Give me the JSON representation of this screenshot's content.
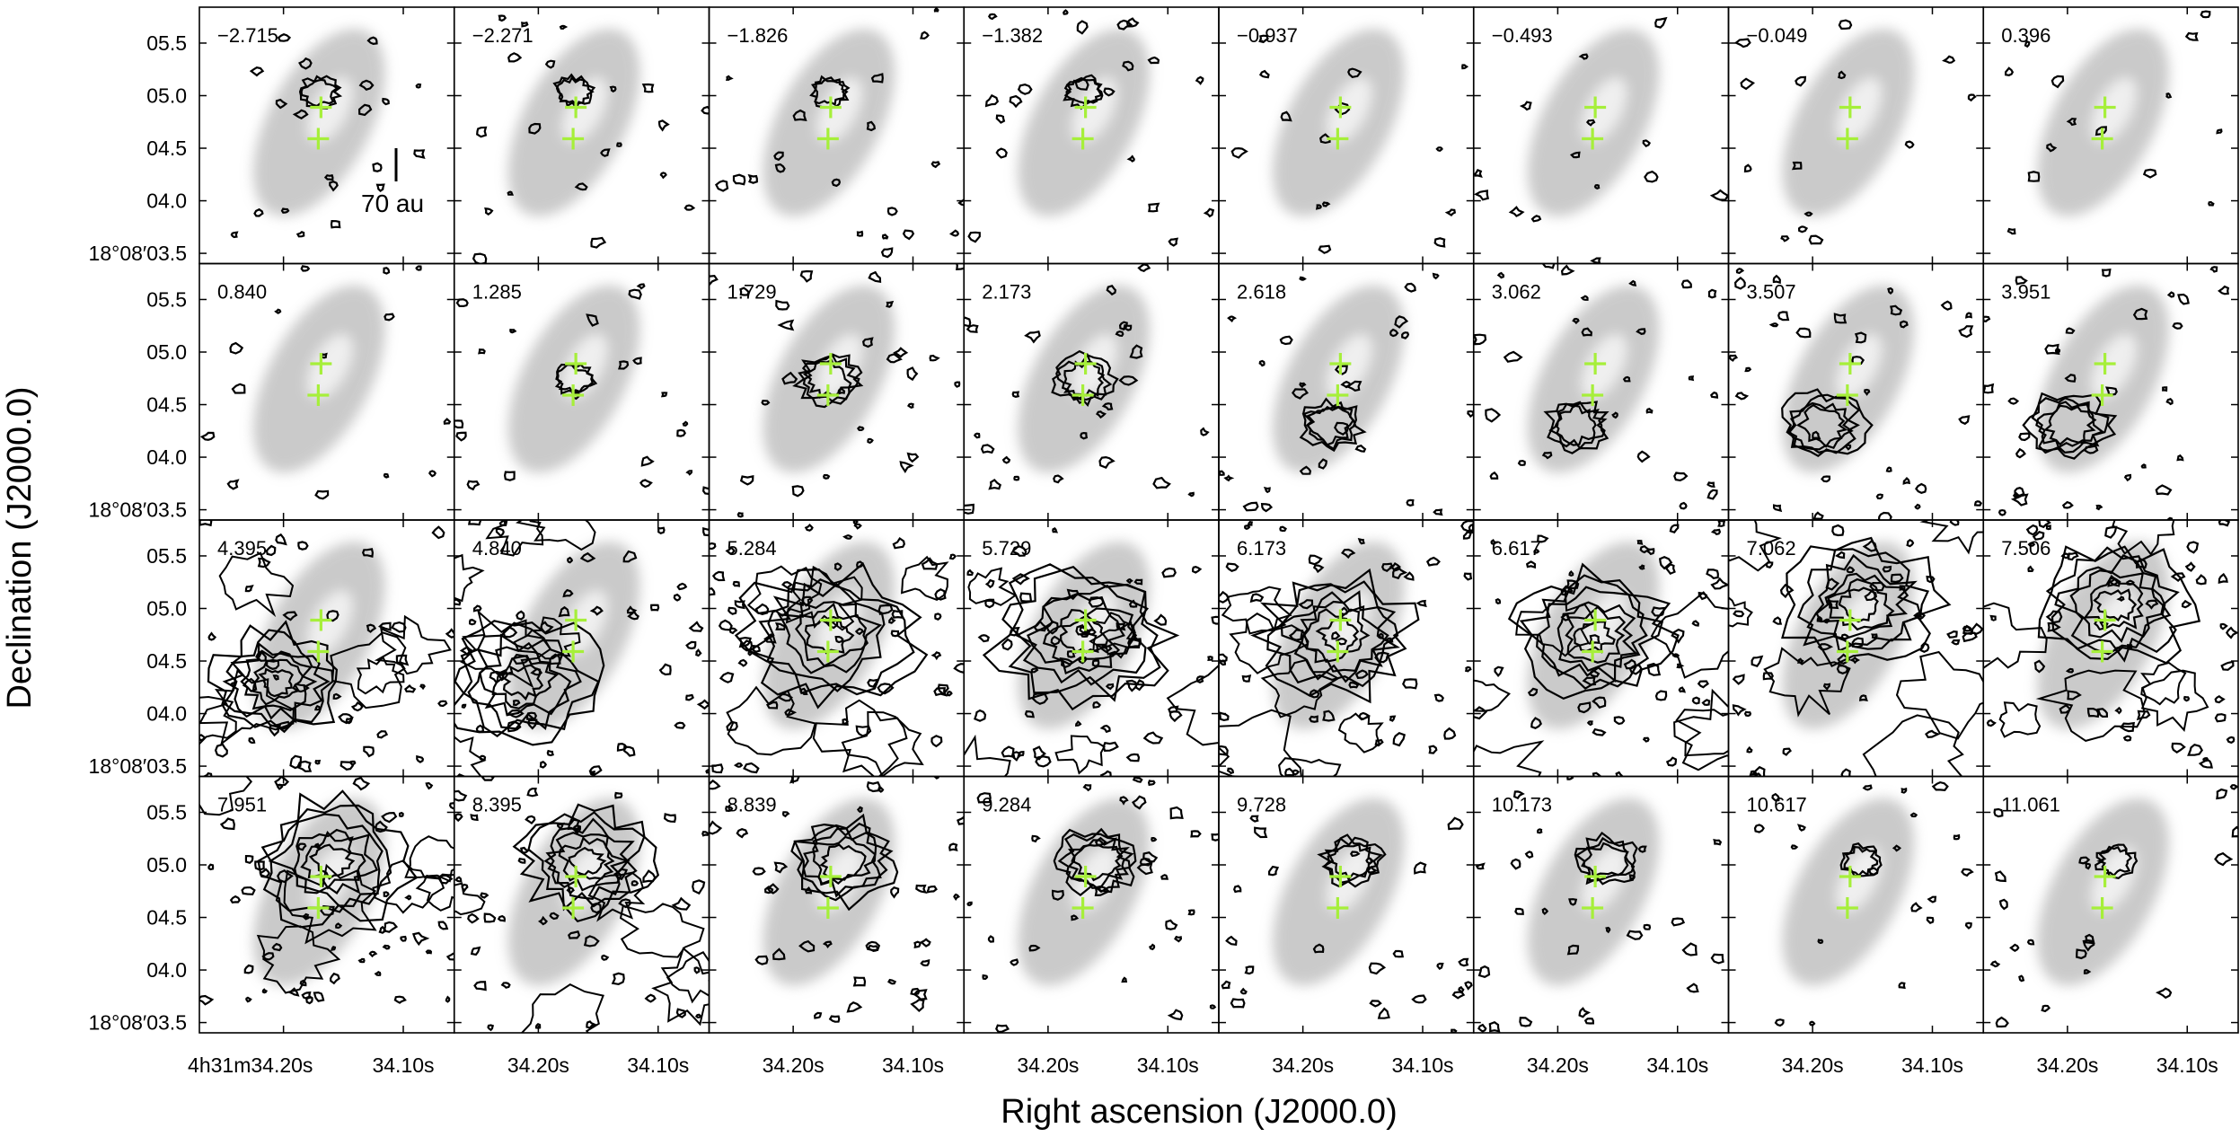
{
  "figure": {
    "xlabel": "Right ascension (J2000.0)",
    "ylabel": "Declination (J2000.0)",
    "scale_bar_label": "70 au",
    "ra_tick_labels": [
      [
        "4",
        "h",
        "31",
        "m",
        "34.20",
        "s"
      ],
      [
        "34.20",
        "s"
      ],
      [
        "34.10",
        "s"
      ]
    ],
    "dec_tick_labels": [
      "05.5",
      "05.0",
      "04.5",
      "04.0",
      "03.5"
    ],
    "dec_prefix": "18°08′",
    "channel_velocities": [
      "−2.715",
      "−2.271",
      "−1.826",
      "−1.382",
      "−0.937",
      "−0.493",
      "−0.049",
      "0.396",
      "0.840",
      "1.285",
      "1.729",
      "2.173",
      "2.618",
      "3.062",
      "3.507",
      "3.951",
      "4.395",
      "4.840",
      "5.284",
      "5.729",
      "6.173",
      "6.617",
      "7.062",
      "7.506",
      "7.951",
      "8.395",
      "8.839",
      "9.284",
      "9.728",
      "10.173",
      "10.617",
      "11.061"
    ],
    "colors": {
      "continuum": "#b9b9b9",
      "contour": "#000000",
      "cross": "#a6ef3a",
      "frame": "#000000"
    },
    "grid": {
      "rows": 4,
      "cols": 8
    }
  }
}
